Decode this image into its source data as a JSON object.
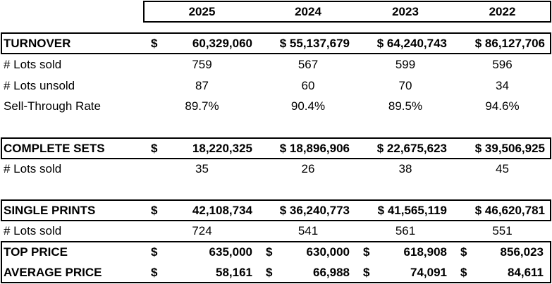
{
  "years": [
    "2025",
    "2024",
    "2023",
    "2022"
  ],
  "turnover": {
    "label": "TURNOVER",
    "values": [
      "60,329,060",
      "$ 55,137,679",
      "$ 64,240,743",
      "$ 86,127,706"
    ],
    "first_currency": "$"
  },
  "turnover_lots_sold": {
    "label": "# Lots sold",
    "values": [
      "759",
      "567",
      "599",
      "596"
    ]
  },
  "turnover_lots_unsold": {
    "label": "# Lots unsold",
    "values": [
      "87",
      "60",
      "70",
      "34"
    ]
  },
  "sell_through": {
    "label": "Sell-Through Rate",
    "values": [
      "89.7%",
      "90.4%",
      "89.5%",
      "94.6%"
    ]
  },
  "complete_sets": {
    "label": "COMPLETE SETS",
    "values": [
      "18,220,325",
      "$ 18,896,906",
      "$ 22,675,623",
      "$ 39,506,925"
    ],
    "first_currency": "$"
  },
  "complete_lots_sold": {
    "label": "# Lots sold",
    "values": [
      "35",
      "26",
      "38",
      "45"
    ]
  },
  "single_prints": {
    "label": "SINGLE PRINTS",
    "values": [
      "42,108,734",
      "$ 36,240,773",
      "$ 41,565,119",
      "$ 46,620,781"
    ],
    "first_currency": "$"
  },
  "single_lots_sold": {
    "label": "# Lots sold",
    "values": [
      "724",
      "541",
      "561",
      "551"
    ]
  },
  "top_price": {
    "label": "TOP PRICE",
    "currency": "$",
    "values": [
      "635,000",
      "630,000",
      "618,908",
      "856,023"
    ]
  },
  "average_price": {
    "label": "AVERAGE PRICE",
    "currency": "$",
    "values": [
      "58,161",
      "66,988",
      "74,091",
      "84,611"
    ]
  }
}
